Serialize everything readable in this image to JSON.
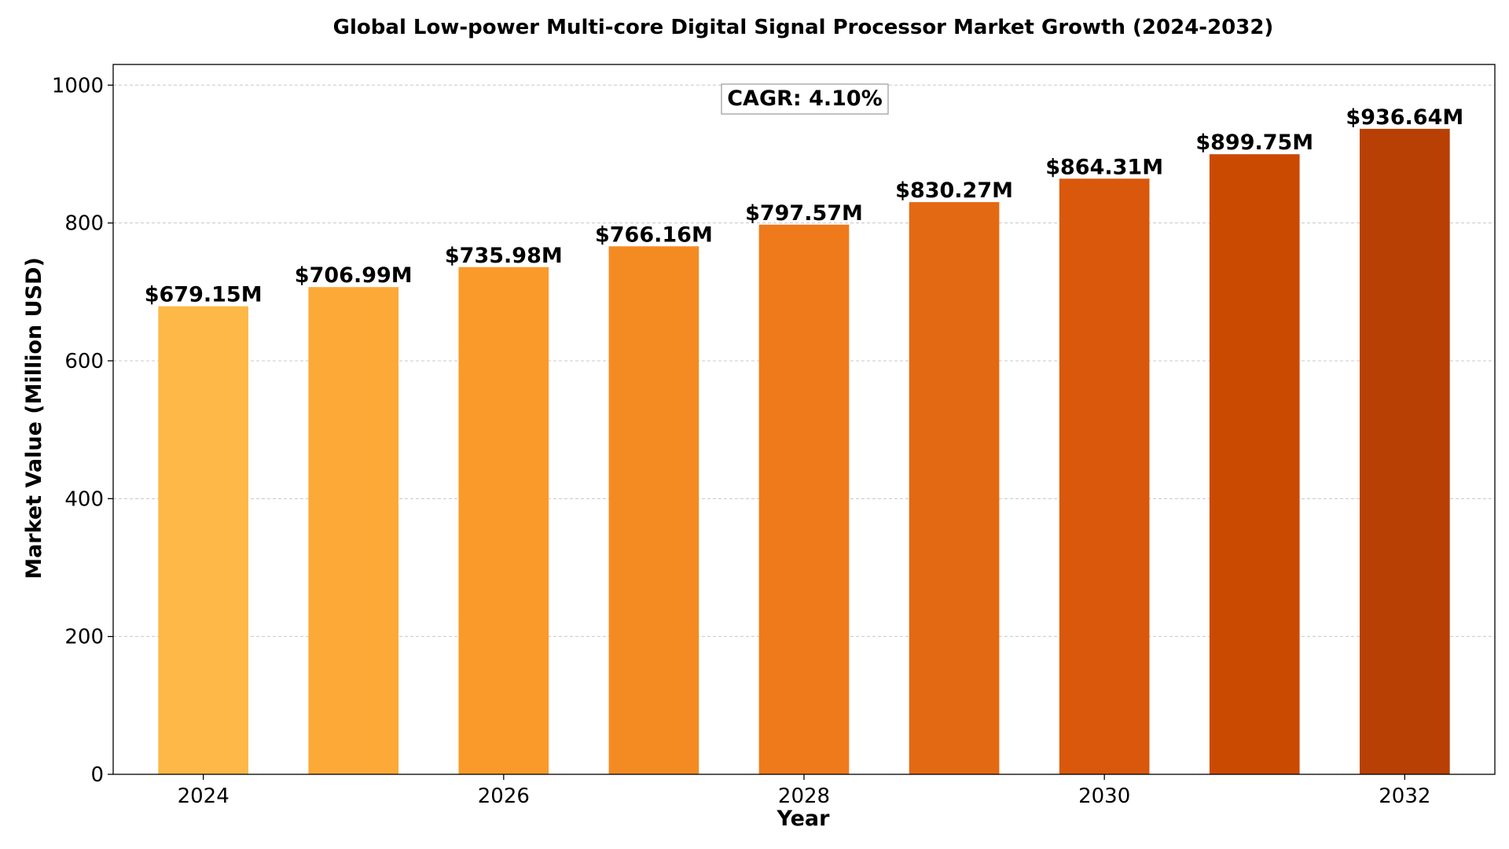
{
  "chart_data": {
    "type": "bar",
    "title": "Global Low-power Multi-core Digital Signal Processor Market Growth (2024-2032)",
    "xlabel": "Year",
    "ylabel": "Market Value (Million USD)",
    "categories": [
      "2024",
      "2025",
      "2026",
      "2027",
      "2028",
      "2029",
      "2030",
      "2031",
      "2032"
    ],
    "values": [
      679.15,
      706.99,
      735.98,
      766.16,
      797.57,
      830.27,
      864.31,
      899.75,
      936.64
    ],
    "data_labels": [
      "$679.15M",
      "$706.99M",
      "$735.98M",
      "$766.16M",
      "$797.57M",
      "$830.27M",
      "$864.31M",
      "$899.75M",
      "$936.64M"
    ],
    "bar_colors": [
      "#FDB848",
      "#FCA938",
      "#FA9A2A",
      "#F48B22",
      "#EE7A1C",
      "#E46913",
      "#D9580B",
      "#CB4A02",
      "#B94004"
    ],
    "xticks": [
      "2024",
      "2026",
      "2028",
      "2030",
      "2032"
    ],
    "yticks": [
      "0",
      "200",
      "400",
      "600",
      "800",
      "1000"
    ],
    "ylim": [
      0,
      1030
    ],
    "grid": "horizontal dashed",
    "annotation": "CAGR: 4.10%"
  }
}
